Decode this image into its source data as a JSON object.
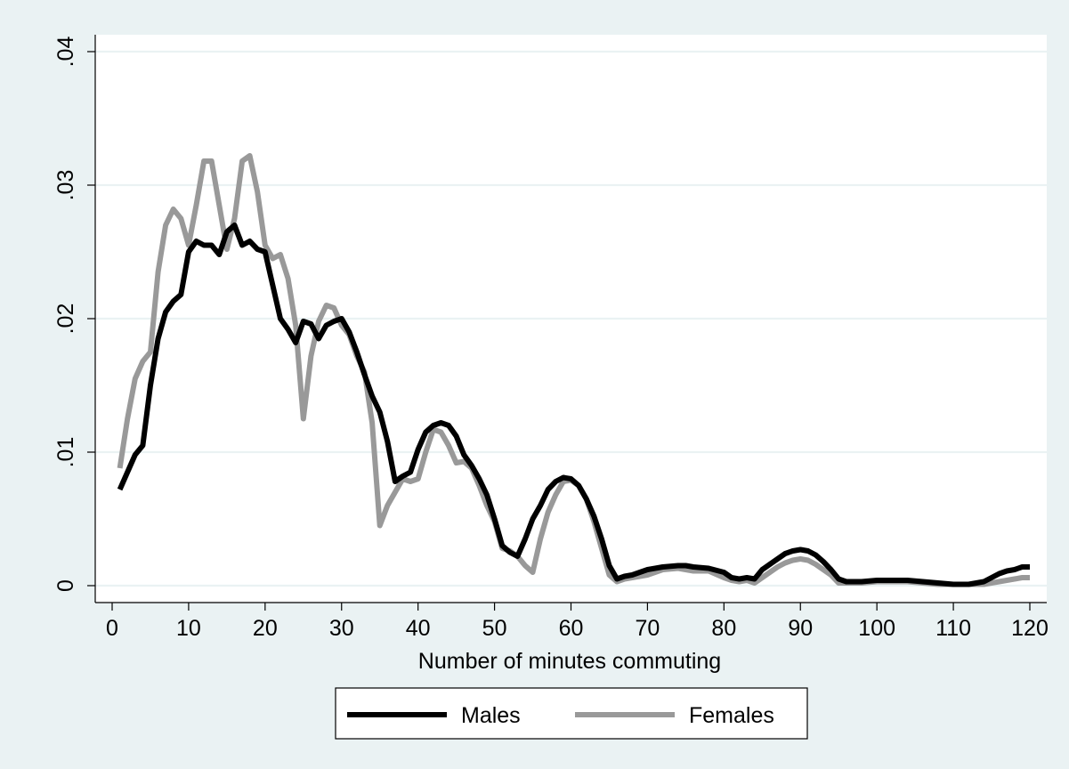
{
  "chart_data": {
    "type": "line",
    "title": "",
    "xlabel": "Number of minutes commuting",
    "ylabel": "",
    "xlim": [
      0,
      120
    ],
    "ylim": [
      0,
      0.04
    ],
    "x_ticks": [
      0,
      10,
      20,
      30,
      40,
      50,
      60,
      70,
      80,
      90,
      100,
      110,
      120
    ],
    "x_tick_labels": [
      "0",
      "10",
      "20",
      "30",
      "40",
      "50",
      "60",
      "70",
      "80",
      "90",
      "100",
      "110",
      "120"
    ],
    "y_ticks": [
      0,
      0.01,
      0.02,
      0.03,
      0.04
    ],
    "y_tick_labels": [
      "0",
      ".01",
      ".02",
      ".03",
      ".04"
    ],
    "grid": true,
    "legend_position": "bottom",
    "series": [
      {
        "name": "Males",
        "color": "#000000",
        "points": [
          [
            1,
            0.0072
          ],
          [
            2,
            0.0085
          ],
          [
            3,
            0.0098
          ],
          [
            4,
            0.0105
          ],
          [
            5,
            0.015
          ],
          [
            6,
            0.0185
          ],
          [
            7,
            0.0205
          ],
          [
            8,
            0.0213
          ],
          [
            9,
            0.0218
          ],
          [
            10,
            0.025
          ],
          [
            11,
            0.0258
          ],
          [
            12,
            0.0255
          ],
          [
            13,
            0.0255
          ],
          [
            14,
            0.0248
          ],
          [
            15,
            0.0265
          ],
          [
            16,
            0.027
          ],
          [
            17,
            0.0255
          ],
          [
            18,
            0.0258
          ],
          [
            19,
            0.0252
          ],
          [
            20,
            0.025
          ],
          [
            21,
            0.0225
          ],
          [
            22,
            0.02
          ],
          [
            23,
            0.0192
          ],
          [
            24,
            0.0182
          ],
          [
            25,
            0.0198
          ],
          [
            26,
            0.0196
          ],
          [
            27,
            0.0185
          ],
          [
            28,
            0.0195
          ],
          [
            29,
            0.0198
          ],
          [
            30,
            0.02
          ],
          [
            31,
            0.019
          ],
          [
            32,
            0.0175
          ],
          [
            33,
            0.0158
          ],
          [
            34,
            0.0142
          ],
          [
            35,
            0.013
          ],
          [
            36,
            0.0108
          ],
          [
            37,
            0.0078
          ],
          [
            38,
            0.0082
          ],
          [
            39,
            0.0085
          ],
          [
            40,
            0.0102
          ],
          [
            41,
            0.0115
          ],
          [
            42,
            0.012
          ],
          [
            43,
            0.0122
          ],
          [
            44,
            0.012
          ],
          [
            45,
            0.0112
          ],
          [
            46,
            0.0098
          ],
          [
            47,
            0.009
          ],
          [
            48,
            0.008
          ],
          [
            49,
            0.0068
          ],
          [
            50,
            0.005
          ],
          [
            51,
            0.003
          ],
          [
            52,
            0.0025
          ],
          [
            53,
            0.0022
          ],
          [
            54,
            0.0035
          ],
          [
            55,
            0.005
          ],
          [
            56,
            0.006
          ],
          [
            57,
            0.0072
          ],
          [
            58,
            0.0078
          ],
          [
            59,
            0.0081
          ],
          [
            60,
            0.008
          ],
          [
            61,
            0.0075
          ],
          [
            62,
            0.0065
          ],
          [
            63,
            0.0052
          ],
          [
            64,
            0.0035
          ],
          [
            65,
            0.0015
          ],
          [
            66,
            0.0005
          ],
          [
            67,
            0.0007
          ],
          [
            68,
            0.0008
          ],
          [
            69,
            0.001
          ],
          [
            70,
            0.0012
          ],
          [
            72,
            0.0014
          ],
          [
            74,
            0.0015
          ],
          [
            75,
            0.0015
          ],
          [
            76,
            0.0014
          ],
          [
            78,
            0.0013
          ],
          [
            80,
            0.001
          ],
          [
            81,
            0.0006
          ],
          [
            82,
            0.0005
          ],
          [
            83,
            0.0006
          ],
          [
            84,
            0.0005
          ],
          [
            85,
            0.0012
          ],
          [
            86,
            0.0016
          ],
          [
            87,
            0.002
          ],
          [
            88,
            0.0024
          ],
          [
            89,
            0.0026
          ],
          [
            90,
            0.0027
          ],
          [
            91,
            0.0026
          ],
          [
            92,
            0.0023
          ],
          [
            93,
            0.0018
          ],
          [
            94,
            0.0012
          ],
          [
            95,
            0.0005
          ],
          [
            96,
            0.0003
          ],
          [
            98,
            0.0003
          ],
          [
            100,
            0.0004
          ],
          [
            102,
            0.0004
          ],
          [
            104,
            0.0004
          ],
          [
            106,
            0.0003
          ],
          [
            108,
            0.0002
          ],
          [
            110,
            0.0001
          ],
          [
            112,
            0.0001
          ],
          [
            113,
            0.0002
          ],
          [
            114,
            0.0003
          ],
          [
            115,
            0.0006
          ],
          [
            116,
            0.0009
          ],
          [
            117,
            0.0011
          ],
          [
            118,
            0.0012
          ],
          [
            119,
            0.0014
          ],
          [
            120,
            0.0014
          ]
        ]
      },
      {
        "name": "Females",
        "color": "#999999",
        "points": [
          [
            1,
            0.0088
          ],
          [
            2,
            0.0125
          ],
          [
            3,
            0.0155
          ],
          [
            4,
            0.0168
          ],
          [
            5,
            0.0175
          ],
          [
            6,
            0.0235
          ],
          [
            7,
            0.027
          ],
          [
            8,
            0.0282
          ],
          [
            9,
            0.0275
          ],
          [
            10,
            0.0255
          ],
          [
            11,
            0.0285
          ],
          [
            12,
            0.0318
          ],
          [
            13,
            0.0318
          ],
          [
            14,
            0.0285
          ],
          [
            15,
            0.0252
          ],
          [
            16,
            0.0275
          ],
          [
            17,
            0.0318
          ],
          [
            18,
            0.0322
          ],
          [
            19,
            0.0295
          ],
          [
            20,
            0.0255
          ],
          [
            21,
            0.0245
          ],
          [
            22,
            0.0248
          ],
          [
            23,
            0.023
          ],
          [
            24,
            0.0195
          ],
          [
            25,
            0.0125
          ],
          [
            26,
            0.0172
          ],
          [
            27,
            0.0198
          ],
          [
            28,
            0.021
          ],
          [
            29,
            0.0208
          ],
          [
            30,
            0.0195
          ],
          [
            31,
            0.0188
          ],
          [
            32,
            0.0172
          ],
          [
            33,
            0.016
          ],
          [
            34,
            0.0122
          ],
          [
            35,
            0.0045
          ],
          [
            36,
            0.006
          ],
          [
            37,
            0.007
          ],
          [
            38,
            0.008
          ],
          [
            39,
            0.0078
          ],
          [
            40,
            0.008
          ],
          [
            41,
            0.01
          ],
          [
            42,
            0.0117
          ],
          [
            43,
            0.0115
          ],
          [
            44,
            0.0105
          ],
          [
            45,
            0.0092
          ],
          [
            46,
            0.0093
          ],
          [
            47,
            0.0088
          ],
          [
            48,
            0.0075
          ],
          [
            49,
            0.006
          ],
          [
            50,
            0.0048
          ],
          [
            51,
            0.0028
          ],
          [
            52,
            0.0026
          ],
          [
            53,
            0.0022
          ],
          [
            54,
            0.0015
          ],
          [
            55,
            0.001
          ],
          [
            56,
            0.0035
          ],
          [
            57,
            0.0055
          ],
          [
            58,
            0.0068
          ],
          [
            59,
            0.0078
          ],
          [
            60,
            0.0079
          ],
          [
            61,
            0.0075
          ],
          [
            62,
            0.0065
          ],
          [
            63,
            0.0048
          ],
          [
            64,
            0.0028
          ],
          [
            65,
            0.0008
          ],
          [
            66,
            0.0003
          ],
          [
            67,
            0.0005
          ],
          [
            68,
            0.0006
          ],
          [
            69,
            0.0007
          ],
          [
            70,
            0.0008
          ],
          [
            72,
            0.0012
          ],
          [
            74,
            0.0013
          ],
          [
            75,
            0.0012
          ],
          [
            76,
            0.0011
          ],
          [
            78,
            0.0011
          ],
          [
            80,
            0.0006
          ],
          [
            81,
            0.0004
          ],
          [
            82,
            0.0003
          ],
          [
            83,
            0.0004
          ],
          [
            84,
            0.0002
          ],
          [
            85,
            0.0006
          ],
          [
            86,
            0.001
          ],
          [
            87,
            0.0014
          ],
          [
            88,
            0.0017
          ],
          [
            89,
            0.0019
          ],
          [
            90,
            0.002
          ],
          [
            91,
            0.0019
          ],
          [
            92,
            0.0016
          ],
          [
            93,
            0.0012
          ],
          [
            94,
            0.0008
          ],
          [
            95,
            0.0002
          ],
          [
            96,
            0.0002
          ],
          [
            98,
            0.0002
          ],
          [
            100,
            0.0003
          ],
          [
            102,
            0.0003
          ],
          [
            104,
            0.0003
          ],
          [
            106,
            0.0002
          ],
          [
            108,
            0.0001
          ],
          [
            110,
            0.0001
          ],
          [
            112,
            0.0001
          ],
          [
            113,
            0.0001
          ],
          [
            114,
            0.0001
          ],
          [
            115,
            0.0002
          ],
          [
            116,
            0.0003
          ],
          [
            117,
            0.0004
          ],
          [
            118,
            0.0005
          ],
          [
            119,
            0.0006
          ],
          [
            120,
            0.0006
          ]
        ]
      }
    ]
  }
}
